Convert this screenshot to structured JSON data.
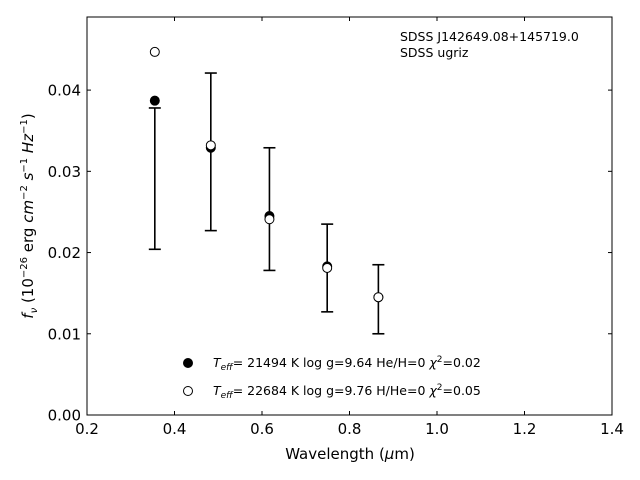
{
  "chart_data": {
    "type": "scatter",
    "title": "",
    "xlabel": {
      "pre": "Wavelength (",
      "sym": "μ",
      "post": "m)"
    },
    "ylabel": {
      "f": "f",
      "nu": "ν",
      "open": " (10",
      "e1": "−26",
      "erg": " erg ",
      "cm": "cm",
      "e2": "−2",
      "s": " s",
      "e3": "−1",
      "hz": " Hz",
      "e4": "−1",
      "close": ")"
    },
    "xlim": [
      0.2,
      1.4
    ],
    "ylim": [
      0.0,
      0.049
    ],
    "xticks": [
      0.2,
      0.4,
      0.6,
      0.8,
      1.0,
      1.2,
      1.4
    ],
    "xtick_labels": [
      "0.2",
      "0.4",
      "0.6",
      "0.8",
      "1.0",
      "1.2",
      "1.4"
    ],
    "yticks": [
      0.0,
      0.01,
      0.02,
      0.03,
      0.04
    ],
    "ytick_labels": [
      "0.00",
      "0.01",
      "0.02",
      "0.03",
      "0.04"
    ],
    "grid": false,
    "annotation": {
      "line1": "SDSS J142649.08+145719.0",
      "line2": "SDSS ugriz"
    },
    "errorbars": [
      {
        "x": 0.355,
        "low": 0.0204,
        "high": 0.0378
      },
      {
        "x": 0.483,
        "low": 0.0227,
        "high": 0.0421
      },
      {
        "x": 0.617,
        "low": 0.0178,
        "high": 0.0329
      },
      {
        "x": 0.749,
        "low": 0.0127,
        "high": 0.0235
      },
      {
        "x": 0.866,
        "low": 0.01,
        "high": 0.0185
      }
    ],
    "series": [
      {
        "marker": "filled",
        "x": [
          0.355,
          0.483,
          0.617,
          0.749,
          0.866
        ],
        "y": [
          0.0387,
          0.0329,
          0.0245,
          0.0183,
          0.0145
        ],
        "legend": {
          "teff": "T",
          "eff": "eff",
          "rest": "= 21494 K  log g=9.64  He/H=0  ",
          "chi": "χ",
          "chi_rest": "=0.02"
        }
      },
      {
        "marker": "open",
        "x": [
          0.355,
          0.483,
          0.617,
          0.749,
          0.866
        ],
        "y": [
          0.0447,
          0.0332,
          0.0241,
          0.0181,
          0.0145
        ],
        "legend": {
          "teff": "T",
          "eff": "eff",
          "rest": "= 22684 K  log g=9.76  H/He=0  ",
          "chi": "χ",
          "chi_rest": "=0.05"
        }
      }
    ]
  }
}
